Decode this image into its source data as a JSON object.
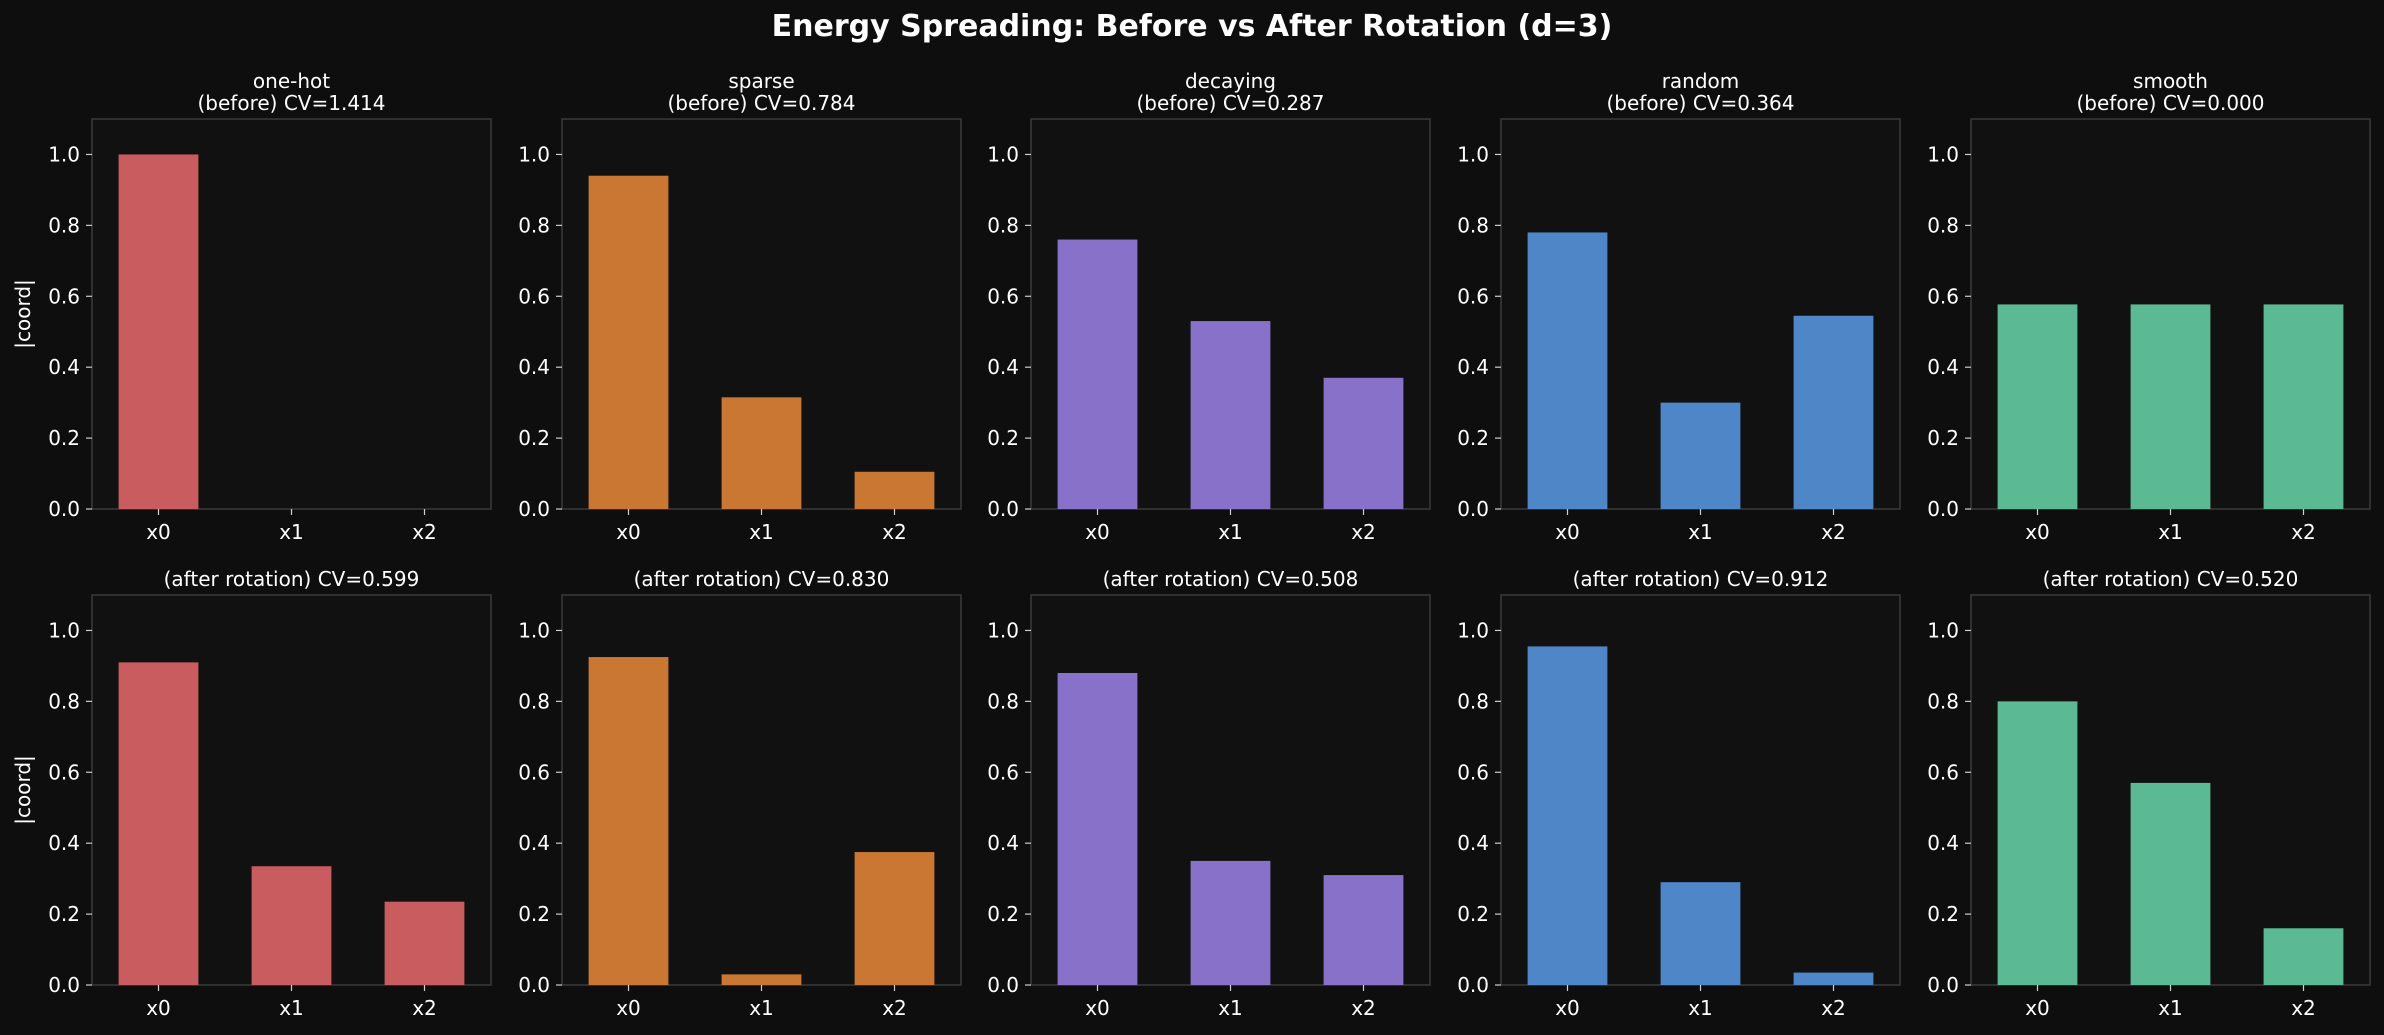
{
  "figure": {
    "title": "Energy Spreading: Before vs After Rotation (d=3)"
  },
  "colors": {
    "background": "#0e0e0e",
    "axes_face": "#111111",
    "axes_edge": "#3a3a3a",
    "text": "#ffffff",
    "one-hot": "#c95c5e",
    "sparse": "#c97733",
    "decaying": "#8872c9",
    "random": "#4f86c8",
    "smooth": "#5bb994"
  },
  "chart_data": [
    {
      "type": "bar",
      "series_key": "one-hot",
      "title": "one-hot\n(before) CV=1.414",
      "xlabel": "",
      "ylabel": "|coord|",
      "categories": [
        "x0",
        "x1",
        "x2"
      ],
      "values": [
        1.0,
        0.0,
        0.0
      ],
      "ylim": [
        0,
        1.1
      ],
      "yticks": [
        0.0,
        0.2,
        0.4,
        0.6,
        0.8,
        1.0
      ],
      "grid": false
    },
    {
      "type": "bar",
      "series_key": "sparse",
      "title": "sparse\n(before) CV=0.784",
      "xlabel": "",
      "ylabel": "",
      "categories": [
        "x0",
        "x1",
        "x2"
      ],
      "values": [
        0.94,
        0.315,
        0.105
      ],
      "ylim": [
        0,
        1.1
      ],
      "yticks": [
        0.0,
        0.2,
        0.4,
        0.6,
        0.8,
        1.0
      ],
      "grid": false
    },
    {
      "type": "bar",
      "series_key": "decaying",
      "title": "decaying\n(before) CV=0.287",
      "xlabel": "",
      "ylabel": "",
      "categories": [
        "x0",
        "x1",
        "x2"
      ],
      "values": [
        0.76,
        0.53,
        0.37
      ],
      "ylim": [
        0,
        1.1
      ],
      "yticks": [
        0.0,
        0.2,
        0.4,
        0.6,
        0.8,
        1.0
      ],
      "grid": false
    },
    {
      "type": "bar",
      "series_key": "random",
      "title": "random\n(before) CV=0.364",
      "xlabel": "",
      "ylabel": "",
      "categories": [
        "x0",
        "x1",
        "x2"
      ],
      "values": [
        0.78,
        0.3,
        0.545
      ],
      "ylim": [
        0,
        1.1
      ],
      "yticks": [
        0.0,
        0.2,
        0.4,
        0.6,
        0.8,
        1.0
      ],
      "grid": false
    },
    {
      "type": "bar",
      "series_key": "smooth",
      "title": "smooth\n(before) CV=0.000",
      "xlabel": "",
      "ylabel": "",
      "categories": [
        "x0",
        "x1",
        "x2"
      ],
      "values": [
        0.577,
        0.577,
        0.577
      ],
      "ylim": [
        0,
        1.1
      ],
      "yticks": [
        0.0,
        0.2,
        0.4,
        0.6,
        0.8,
        1.0
      ],
      "grid": false
    },
    {
      "type": "bar",
      "series_key": "one-hot",
      "title": "(after rotation) CV=0.599",
      "xlabel": "",
      "ylabel": "|coord|",
      "categories": [
        "x0",
        "x1",
        "x2"
      ],
      "values": [
        0.91,
        0.335,
        0.235
      ],
      "ylim": [
        0,
        1.1
      ],
      "yticks": [
        0.0,
        0.2,
        0.4,
        0.6,
        0.8,
        1.0
      ],
      "grid": false
    },
    {
      "type": "bar",
      "series_key": "sparse",
      "title": "(after rotation) CV=0.830",
      "xlabel": "",
      "ylabel": "",
      "categories": [
        "x0",
        "x1",
        "x2"
      ],
      "values": [
        0.925,
        0.03,
        0.375
      ],
      "ylim": [
        0,
        1.1
      ],
      "yticks": [
        0.0,
        0.2,
        0.4,
        0.6,
        0.8,
        1.0
      ],
      "grid": false
    },
    {
      "type": "bar",
      "series_key": "decaying",
      "title": "(after rotation) CV=0.508",
      "xlabel": "",
      "ylabel": "",
      "categories": [
        "x0",
        "x1",
        "x2"
      ],
      "values": [
        0.88,
        0.35,
        0.31
      ],
      "ylim": [
        0,
        1.1
      ],
      "yticks": [
        0.0,
        0.2,
        0.4,
        0.6,
        0.8,
        1.0
      ],
      "grid": false
    },
    {
      "type": "bar",
      "series_key": "random",
      "title": "(after rotation) CV=0.912",
      "xlabel": "",
      "ylabel": "",
      "categories": [
        "x0",
        "x1",
        "x2"
      ],
      "values": [
        0.955,
        0.29,
        0.035
      ],
      "ylim": [
        0,
        1.1
      ],
      "yticks": [
        0.0,
        0.2,
        0.4,
        0.6,
        0.8,
        1.0
      ],
      "grid": false
    },
    {
      "type": "bar",
      "series_key": "smooth",
      "title": "(after rotation) CV=0.520",
      "xlabel": "",
      "ylabel": "",
      "categories": [
        "x0",
        "x1",
        "x2"
      ],
      "values": [
        0.8,
        0.57,
        0.16
      ],
      "ylim": [
        0,
        1.1
      ],
      "yticks": [
        0.0,
        0.2,
        0.4,
        0.6,
        0.8,
        1.0
      ],
      "grid": false
    }
  ]
}
